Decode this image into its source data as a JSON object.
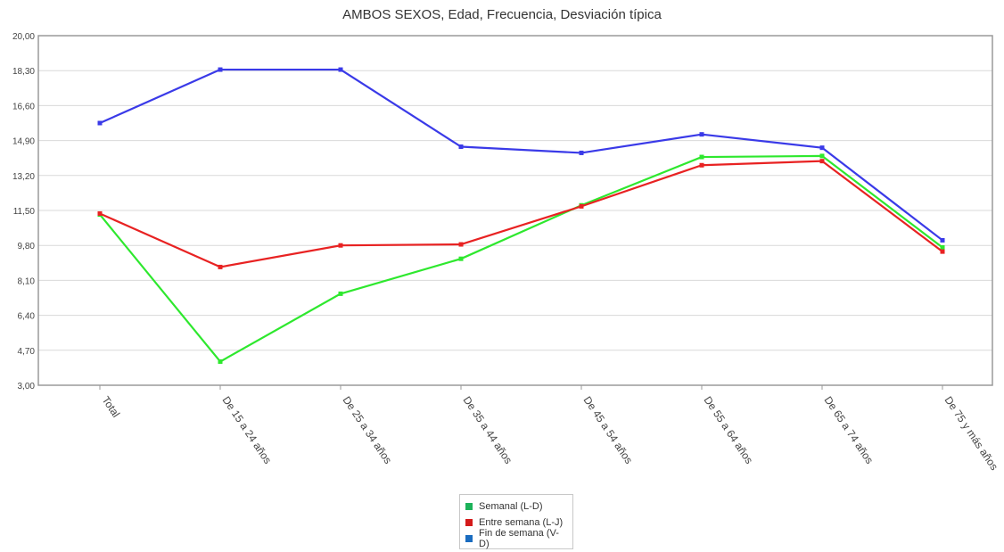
{
  "chart_data": {
    "type": "line",
    "title": "AMBOS SEXOS, Edad, Frecuencia, Desviación típica",
    "categories": [
      "Total",
      "De 15 a 24 años",
      "De 25 a 34 años",
      "De 35 a 44 años",
      "De 45 a 54 años",
      "De 55 a 64 años",
      "De 65 a 74 años",
      "De 75 y más años"
    ],
    "y_ticks": [
      "20,00",
      "18,30",
      "16,60",
      "14,90",
      "13,20",
      "11,50",
      "9,80",
      "8,10",
      "6,40",
      "4,70",
      "3,00"
    ],
    "ylim": [
      3.0,
      20.0
    ],
    "grid": true,
    "legend_position": "bottom",
    "series": [
      {
        "name": "Semanal (L-D)",
        "color": "#2ee82e",
        "values": [
          11.3,
          4.15,
          7.45,
          9.15,
          11.75,
          14.1,
          14.15,
          9.7
        ]
      },
      {
        "name": "Entre semana (L-J)",
        "color": "#e82222",
        "values": [
          11.35,
          8.75,
          9.8,
          9.85,
          11.7,
          13.7,
          13.9,
          9.5
        ]
      },
      {
        "name": "Fin de semana (V-D)",
        "color": "#3a3ae8",
        "values": [
          15.75,
          18.35,
          18.35,
          14.6,
          14.3,
          15.2,
          14.55,
          10.05
        ]
      }
    ],
    "legend_swatch_colors": [
      "#1db25a",
      "#d41a1a",
      "#1a6cc0"
    ]
  }
}
